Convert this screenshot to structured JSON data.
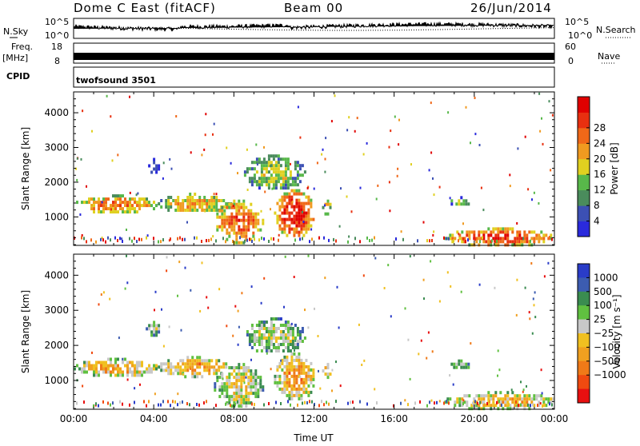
{
  "header": {
    "station": "Dome C East (fitACF)",
    "beam": "Beam 00",
    "date": "26/Jun/2014"
  },
  "strip_panels": {
    "nsky_label": "N.Sky",
    "nsearch_label": "N.Search",
    "nsky_ticks": [
      "10^5",
      "10^0"
    ],
    "nsearch_ticks": [
      "10^5",
      "10^0"
    ],
    "freq_label": "Freq.",
    "freq_unit": "[MHz]",
    "freq_ticks": [
      "18",
      "8"
    ],
    "nave_label": "Nave",
    "nave_ticks": [
      "60",
      "0"
    ],
    "cpid_label": "CPID",
    "cpid_value": "twofsound 3501"
  },
  "colors": {
    "power": [
      "#2a2adc",
      "#3c50b4",
      "#4a8c5c",
      "#58b84a",
      "#e0d020",
      "#f09a20",
      "#f06818",
      "#e83010",
      "#e00000"
    ],
    "velocity": [
      "#2a3cc8",
      "#3c5cb0",
      "#3a8c50",
      "#60c040",
      "#c8c8c8",
      "#f0c020",
      "#f0a020",
      "#f07a18",
      "#f04a10",
      "#e81010"
    ]
  },
  "chart_data": [
    {
      "type": "heatmap",
      "panel": "power",
      "ylabel": "Slant Range [km]",
      "xlim": [
        0,
        24
      ],
      "ylim": [
        180,
        4600
      ],
      "yticks": [
        1000,
        2000,
        3000,
        4000
      ],
      "colorbar_label": "Power [dB]",
      "colorbar_ticks": [
        "4",
        "8",
        "12",
        "16",
        "20",
        "24",
        "28"
      ],
      "features": [
        {
          "x0": 0.0,
          "x1": 4.2,
          "y0": 1150,
          "y1": 1650,
          "level": 0.72
        },
        {
          "x0": 4.2,
          "x1": 7.8,
          "y0": 1150,
          "y1": 1700,
          "level": 0.62
        },
        {
          "x0": 7.0,
          "x1": 9.4,
          "y0": 300,
          "y1": 1500,
          "level": 0.8
        },
        {
          "x0": 10.0,
          "x1": 12.0,
          "y0": 450,
          "y1": 1800,
          "level": 0.95
        },
        {
          "x0": 8.5,
          "x1": 11.5,
          "y0": 1800,
          "y1": 2800,
          "level": 0.45
        },
        {
          "x0": 12.4,
          "x1": 12.8,
          "y0": 1100,
          "y1": 1500,
          "level": 0.6
        },
        {
          "x0": 18.7,
          "x1": 19.8,
          "y0": 1350,
          "y1": 1600,
          "level": 0.35
        },
        {
          "x0": 18.5,
          "x1": 24.0,
          "y0": 200,
          "y1": 700,
          "level": 0.85
        },
        {
          "x0": 3.6,
          "x1": 4.3,
          "y0": 2300,
          "y1": 2700,
          "level": 0.15
        }
      ]
    },
    {
      "type": "heatmap",
      "panel": "velocity",
      "ylabel": "Slant Range [km]",
      "xlabel": "Time UT",
      "xlim": [
        0,
        24
      ],
      "ylim": [
        180,
        4600
      ],
      "yticks": [
        1000,
        2000,
        3000,
        4000
      ],
      "xticks": [
        "00:00",
        "04:00",
        "08:00",
        "12:00",
        "16:00",
        "20:00",
        "00:00"
      ],
      "colorbar_label": "Velocity [m s⁻¹]",
      "colorbar_ticks": [
        "1000",
        "500",
        "100",
        "25",
        "−25",
        "−100",
        "−500",
        "−1000"
      ],
      "features": [
        {
          "x0": 0.0,
          "x1": 4.2,
          "y0": 1150,
          "y1": 1650,
          "level": 0.65
        },
        {
          "x0": 4.2,
          "x1": 7.8,
          "y0": 1150,
          "y1": 1700,
          "level": 0.7
        },
        {
          "x0": 7.0,
          "x1": 9.4,
          "y0": 300,
          "y1": 1500,
          "level": 0.55
        },
        {
          "x0": 10.0,
          "x1": 12.0,
          "y0": 450,
          "y1": 1800,
          "level": 0.7
        },
        {
          "x0": 8.5,
          "x1": 11.5,
          "y0": 1800,
          "y1": 2800,
          "level": 0.45
        },
        {
          "x0": 12.4,
          "x1": 12.8,
          "y0": 1100,
          "y1": 1500,
          "level": 0.65
        },
        {
          "x0": 18.7,
          "x1": 19.8,
          "y0": 1350,
          "y1": 1600,
          "level": 0.35
        },
        {
          "x0": 18.5,
          "x1": 24.0,
          "y0": 200,
          "y1": 700,
          "level": 0.62
        },
        {
          "x0": 3.6,
          "x1": 4.3,
          "y0": 2300,
          "y1": 2700,
          "level": 0.45
        }
      ]
    }
  ]
}
